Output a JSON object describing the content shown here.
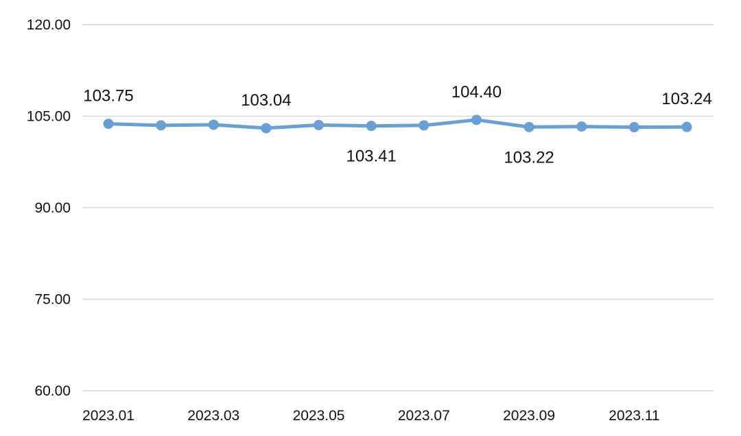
{
  "chart_data": {
    "type": "line",
    "title": "",
    "xlabel": "",
    "ylabel": "",
    "x": [
      "2023.01",
      "2023.02",
      "2023.03",
      "2023.04",
      "2023.05",
      "2023.06",
      "2023.07",
      "2023.08",
      "2023.09",
      "2023.10",
      "2023.11",
      "2023.12"
    ],
    "x_tick_labels": [
      "2023.01",
      "",
      "2023.03",
      "",
      "2023.05",
      "",
      "2023.07",
      "",
      "2023.09",
      "",
      "2023.11",
      ""
    ],
    "series": [
      {
        "values": [
          103.75,
          103.5,
          103.6,
          103.04,
          103.55,
          103.41,
          103.5,
          104.4,
          103.22,
          103.3,
          103.2,
          103.24
        ],
        "color": "#6A9FD4"
      }
    ],
    "data_labels": [
      {
        "index": 0,
        "text": "103.75",
        "position": "above"
      },
      {
        "index": 3,
        "text": "103.04",
        "position": "above"
      },
      {
        "index": 5,
        "text": "103.41",
        "position": "below"
      },
      {
        "index": 7,
        "text": "104.40",
        "position": "above"
      },
      {
        "index": 8,
        "text": "103.22",
        "position": "below"
      },
      {
        "index": 11,
        "text": "103.24",
        "position": "above"
      }
    ],
    "ylim": [
      60,
      120
    ],
    "y_ticks": [
      "60.00",
      "75.00",
      "90.00",
      "105.00",
      "120.00"
    ],
    "grid": true,
    "gridline_color": "#d9d9d9"
  }
}
